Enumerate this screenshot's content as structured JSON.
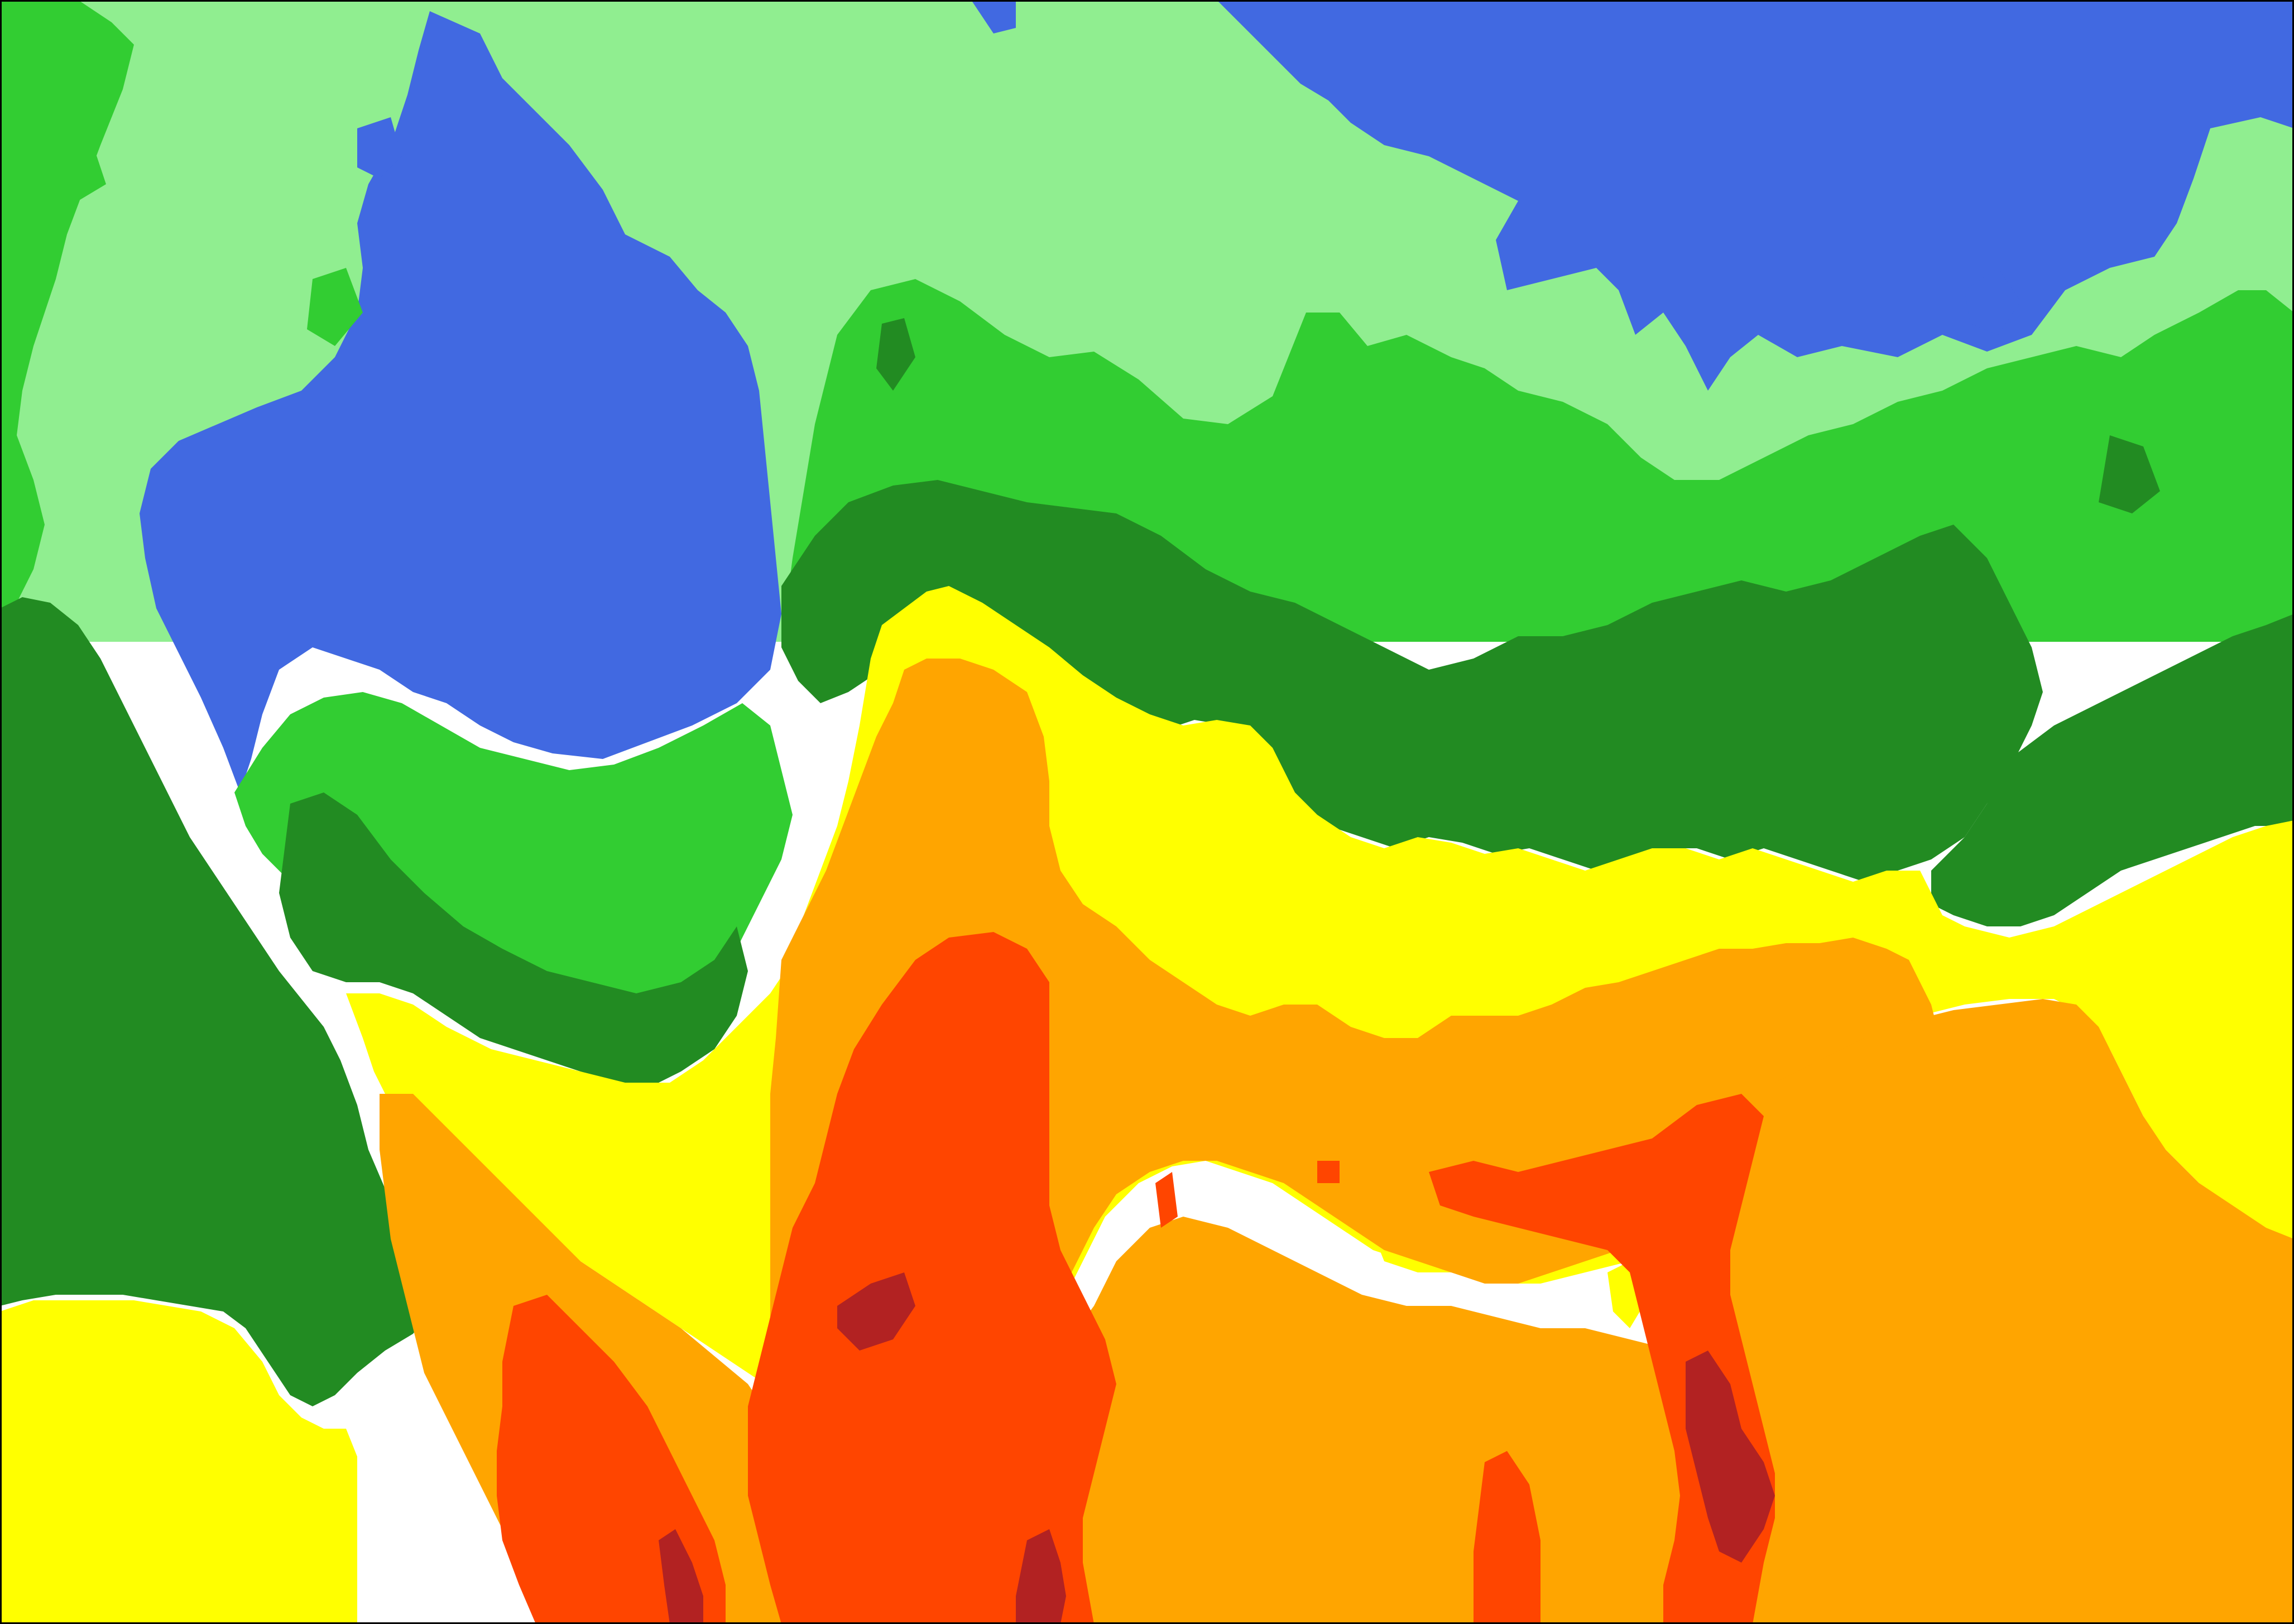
{
  "map": {
    "type": "filled-contour",
    "level_colors": {
      "blue": "#4169E1",
      "light_green": "#90EE90",
      "green": "#32CD32",
      "dark_green": "#228B22",
      "yellow": "#FFFF00",
      "orange": "#FFA500",
      "red_orange": "#FF4500",
      "dark_red": "#B22222"
    },
    "levels": [
      {
        "id": "blue"
      },
      {
        "id": "light_green"
      },
      {
        "id": "green"
      },
      {
        "id": "dark_green"
      },
      {
        "id": "yellow"
      },
      {
        "id": "orange"
      },
      {
        "id": "red_orange"
      },
      {
        "id": "dark_red"
      }
    ],
    "gridlines": false,
    "legend": "none",
    "text_labels": []
  }
}
